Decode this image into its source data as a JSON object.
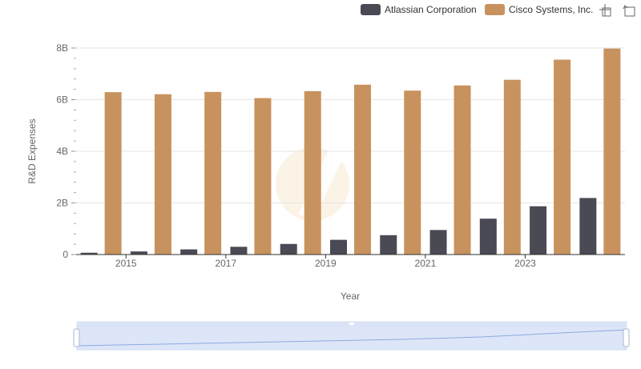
{
  "chart_data": {
    "type": "bar",
    "categories": [
      "2014",
      "2015",
      "2016",
      "2017",
      "2018",
      "2019",
      "2020",
      "2021",
      "2022",
      "2023",
      "2024"
    ],
    "x_tick_labels": [
      "2015",
      "2017",
      "2019",
      "2021",
      "2023"
    ],
    "series": [
      {
        "name": "Atlassian Corporation",
        "color": "#4a4a55",
        "values": [
          0.07,
          0.12,
          0.2,
          0.3,
          0.41,
          0.57,
          0.75,
          0.95,
          1.39,
          1.87,
          2.19
        ]
      },
      {
        "name": "Cisco Systems, Inc.",
        "color": "#c8925e",
        "values": [
          6.29,
          6.21,
          6.3,
          6.06,
          6.33,
          6.58,
          6.35,
          6.55,
          6.77,
          7.55,
          7.98
        ]
      }
    ],
    "xlabel": "Year",
    "ylabel": "R&D Expenses",
    "ylim": [
      0,
      8
    ],
    "y_ticks": [
      0,
      2,
      4,
      6,
      8
    ],
    "y_tick_labels": [
      "0",
      "2B",
      "4B",
      "6B",
      "8B"
    ],
    "grid": true,
    "legend_position": "top-right"
  },
  "toolbar": {
    "icons": [
      "zoom-icon",
      "restore-icon"
    ]
  },
  "data_zoom": {
    "range_start_percent": 0,
    "range_end_percent": 100
  }
}
